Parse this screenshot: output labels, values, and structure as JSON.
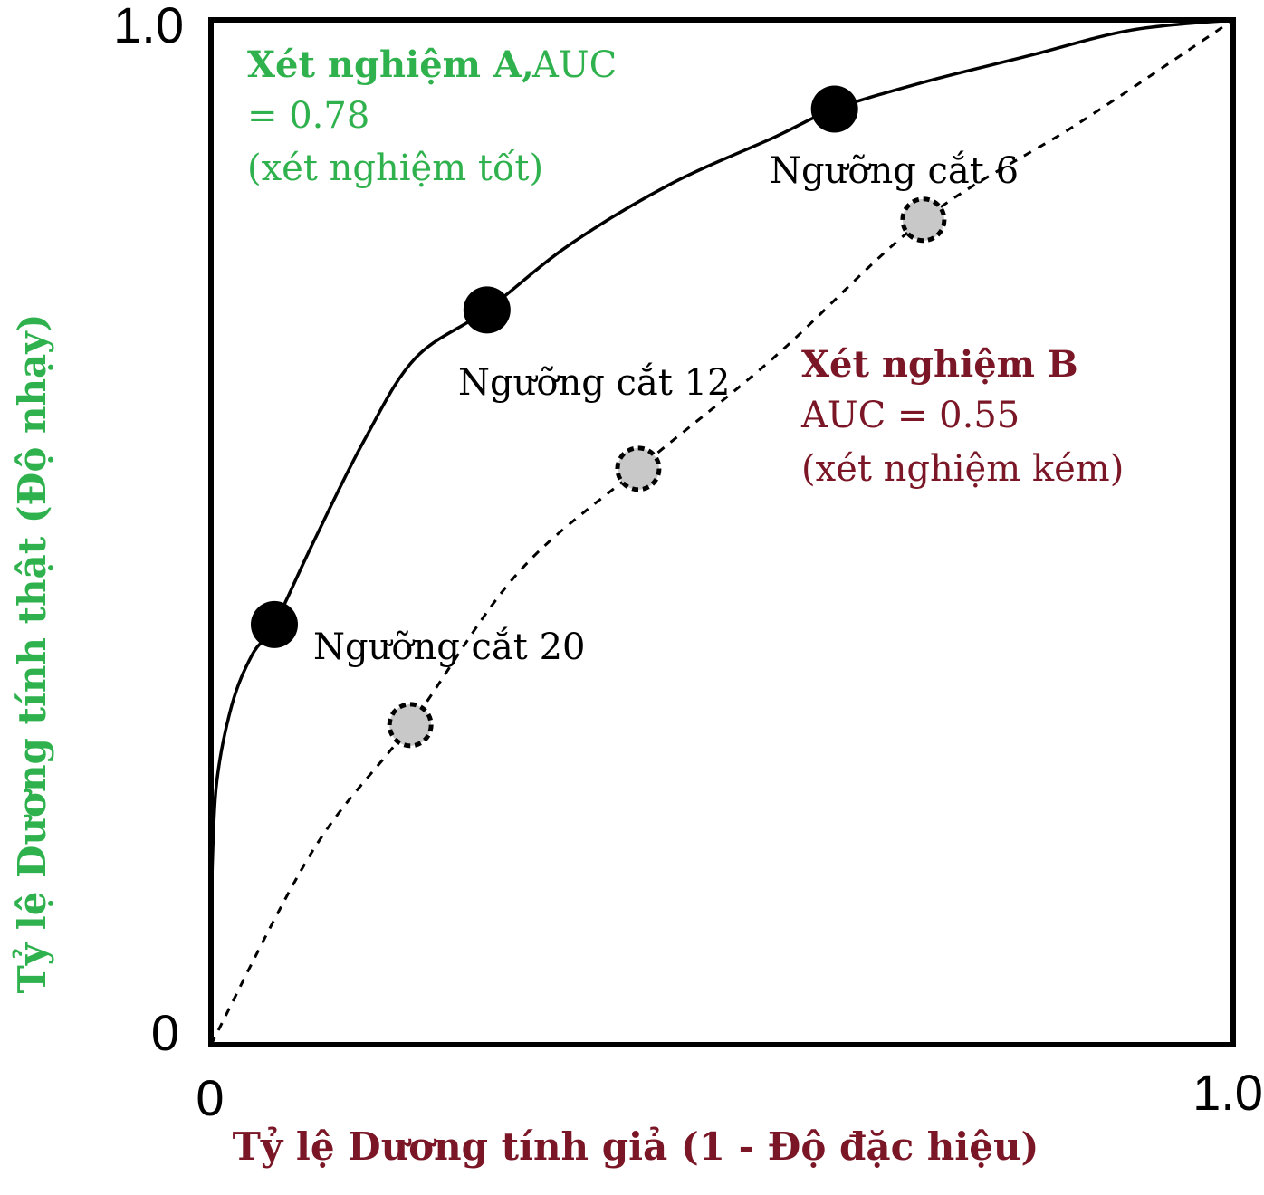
{
  "chart_data": {
    "type": "line",
    "xlabel": "Tỷ lệ Dương tính giả (1 - Độ đặc hiệu)",
    "ylabel": "Tỷ lệ Dương tính thật (Độ nhạy)",
    "xlim": [
      0,
      1
    ],
    "ylim": [
      0,
      1
    ],
    "x_ticks": [
      "0",
      "1.0"
    ],
    "y_ticks": [
      "0",
      "1.0"
    ],
    "grid": false,
    "colors": {
      "xlabel": "#7a1626",
      "ylabel": "#2fb24e",
      "test_a": "#2fb24e",
      "test_b": "#7a1626",
      "curve": "#000000",
      "point_b_fill": "#c8c8c8"
    },
    "series": [
      {
        "key": "test_a",
        "style": "solid",
        "curve_x": [
          0,
          0.005,
          0.02,
          0.04,
          0.062,
          0.1,
          0.15,
          0.2,
          0.27,
          0.35,
          0.45,
          0.55,
          0.61,
          0.7,
          0.8,
          0.9,
          1.0
        ],
        "curve_y": [
          0.13,
          0.25,
          0.33,
          0.38,
          0.41,
          0.49,
          0.59,
          0.67,
          0.717,
          0.78,
          0.84,
          0.885,
          0.913,
          0.94,
          0.965,
          0.99,
          1.0
        ],
        "points": [
          {
            "x": 0.062,
            "y": 0.41,
            "label": "Ngưỡng cắt 20"
          },
          {
            "x": 0.27,
            "y": 0.717,
            "label": "Ngưỡng cắt 12"
          },
          {
            "x": 0.61,
            "y": 0.913,
            "label": "Ngưỡng cắt 6"
          }
        ]
      },
      {
        "key": "test_b",
        "style": "dashed",
        "curve_x": [
          0,
          0.1,
          0.195,
          0.3,
          0.418,
          0.55,
          0.697,
          0.85,
          1.0
        ],
        "curve_y": [
          0,
          0.19,
          0.312,
          0.46,
          0.562,
          0.67,
          0.805,
          0.9,
          1.0
        ],
        "points": [
          {
            "x": 0.195,
            "y": 0.312
          },
          {
            "x": 0.418,
            "y": 0.562
          },
          {
            "x": 0.697,
            "y": 0.805
          }
        ]
      }
    ],
    "annotations": {
      "test_a": {
        "name": "Xét nghiệm A,",
        "auc_part1": "AUC",
        "auc_part2": "= 0.78",
        "quality": "(xét nghiệm tốt)"
      },
      "test_b": {
        "name": "Xét nghiệm B",
        "auc": "AUC = 0.55",
        "quality": "(xét nghiệm kém)"
      }
    }
  }
}
